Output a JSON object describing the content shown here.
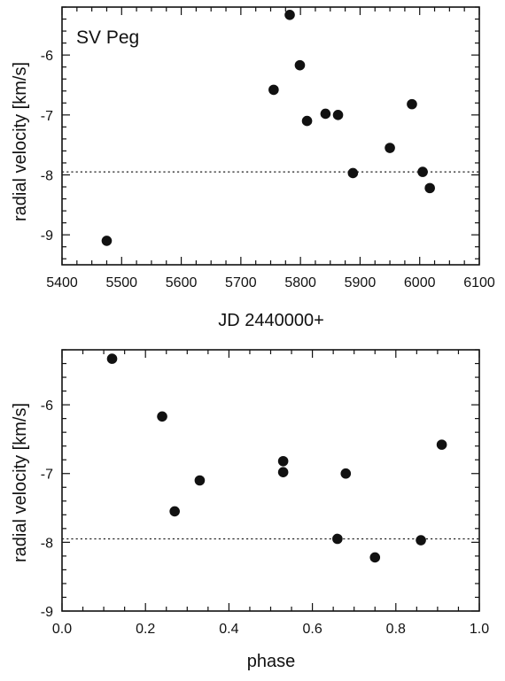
{
  "chart_data": [
    {
      "type": "scatter",
      "title": "SV Peg",
      "xlabel": "JD 2440000+",
      "ylabel": "radial velocity [km/s]",
      "xlim": [
        5400,
        6100
      ],
      "ylim": [
        -9.5,
        -5.2
      ],
      "x_ticks": [
        5400,
        5500,
        5600,
        5700,
        5800,
        5900,
        6000,
        6100
      ],
      "x_tick_labels": [
        "5400",
        "5500",
        "5600",
        "5700",
        "5800",
        "5900",
        "6000",
        "6100"
      ],
      "y_ticks": [
        -9,
        -8,
        -7,
        -6
      ],
      "y_tick_labels": [
        "-9",
        "-8",
        "-7",
        "-6"
      ],
      "reference_line": {
        "y": -7.95,
        "style": "dotted"
      },
      "grid": false,
      "points": [
        {
          "x": 5475,
          "y": -9.1
        },
        {
          "x": 5755,
          "y": -6.58
        },
        {
          "x": 5782,
          "y": -5.33
        },
        {
          "x": 5799,
          "y": -6.17
        },
        {
          "x": 5811,
          "y": -7.1
        },
        {
          "x": 5842,
          "y": -6.98
        },
        {
          "x": 5863,
          "y": -7.0
        },
        {
          "x": 5888,
          "y": -7.97
        },
        {
          "x": 5950,
          "y": -7.55
        },
        {
          "x": 5987,
          "y": -6.82
        },
        {
          "x": 6005,
          "y": -7.95
        },
        {
          "x": 6017,
          "y": -8.22
        }
      ]
    },
    {
      "type": "scatter",
      "title": "",
      "xlabel": "phase",
      "ylabel": "radial velocity [km/s]",
      "xlim": [
        0.0,
        1.0
      ],
      "ylim": [
        -9.0,
        -5.2
      ],
      "x_ticks": [
        0.0,
        0.2,
        0.4,
        0.6,
        0.8,
        1.0
      ],
      "x_tick_labels": [
        "0.0",
        "0.2",
        "0.4",
        "0.6",
        "0.8",
        "1.0"
      ],
      "y_ticks": [
        -9,
        -8,
        -7,
        -6
      ],
      "y_tick_labels": [
        "-9",
        "-8",
        "-7",
        "-6"
      ],
      "reference_line": {
        "y": -7.95,
        "style": "dotted"
      },
      "grid": false,
      "points": [
        {
          "x": 0.12,
          "y": -5.33
        },
        {
          "x": 0.24,
          "y": -6.17
        },
        {
          "x": 0.27,
          "y": -7.55
        },
        {
          "x": 0.33,
          "y": -7.1
        },
        {
          "x": 0.53,
          "y": -6.82
        },
        {
          "x": 0.53,
          "y": -6.98
        },
        {
          "x": 0.66,
          "y": -7.95
        },
        {
          "x": 0.68,
          "y": -7.0
        },
        {
          "x": 0.75,
          "y": -8.22
        },
        {
          "x": 0.86,
          "y": -7.97
        },
        {
          "x": 0.91,
          "y": -6.58
        }
      ]
    }
  ]
}
